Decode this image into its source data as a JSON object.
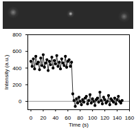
{
  "chart_data": {
    "type": "line",
    "x_label": "Time (s)",
    "y_label": "Intensity (a.u.)",
    "x": [
      0,
      2,
      4,
      6,
      8,
      10,
      12,
      14,
      16,
      18,
      20,
      22,
      24,
      26,
      28,
      30,
      32,
      34,
      36,
      38,
      40,
      42,
      44,
      46,
      48,
      50,
      52,
      54,
      56,
      58,
      60,
      62,
      64,
      66,
      68,
      70,
      72,
      74,
      76,
      78,
      80,
      82,
      84,
      86,
      88,
      90,
      92,
      94,
      96,
      98,
      100,
      102,
      104,
      106,
      108,
      110,
      112,
      114,
      116,
      118,
      120,
      122,
      124,
      126,
      128,
      130,
      132,
      134,
      136,
      138,
      140,
      142,
      144,
      146,
      148
    ],
    "values": [
      480,
      420,
      510,
      390,
      540,
      450,
      470,
      380,
      520,
      430,
      560,
      410,
      460,
      500,
      370,
      480,
      440,
      530,
      400,
      490,
      450,
      550,
      420,
      470,
      390,
      510,
      460,
      430,
      540,
      410,
      480,
      500,
      420,
      470,
      90,
      10,
      -60,
      30,
      -20,
      50,
      0,
      -40,
      20,
      -10,
      40,
      60,
      -30,
      10,
      80,
      -20,
      30,
      0,
      -50,
      20,
      40,
      -10,
      110,
      10,
      -30,
      50,
      20,
      -20,
      0,
      70,
      -40,
      30,
      10,
      -10,
      40,
      -30,
      20,
      60,
      0,
      -20,
      10
    ],
    "color": "#000000",
    "marker": "circle",
    "line_style": "solid",
    "reference_line": 0,
    "xlim": [
      -5,
      160
    ],
    "xticks": [
      0,
      20,
      40,
      60,
      80,
      100,
      120,
      140,
      160
    ],
    "ylim": [
      -100,
      800
    ],
    "yticks": [
      0,
      200,
      400,
      600,
      800
    ],
    "grid": false
  }
}
